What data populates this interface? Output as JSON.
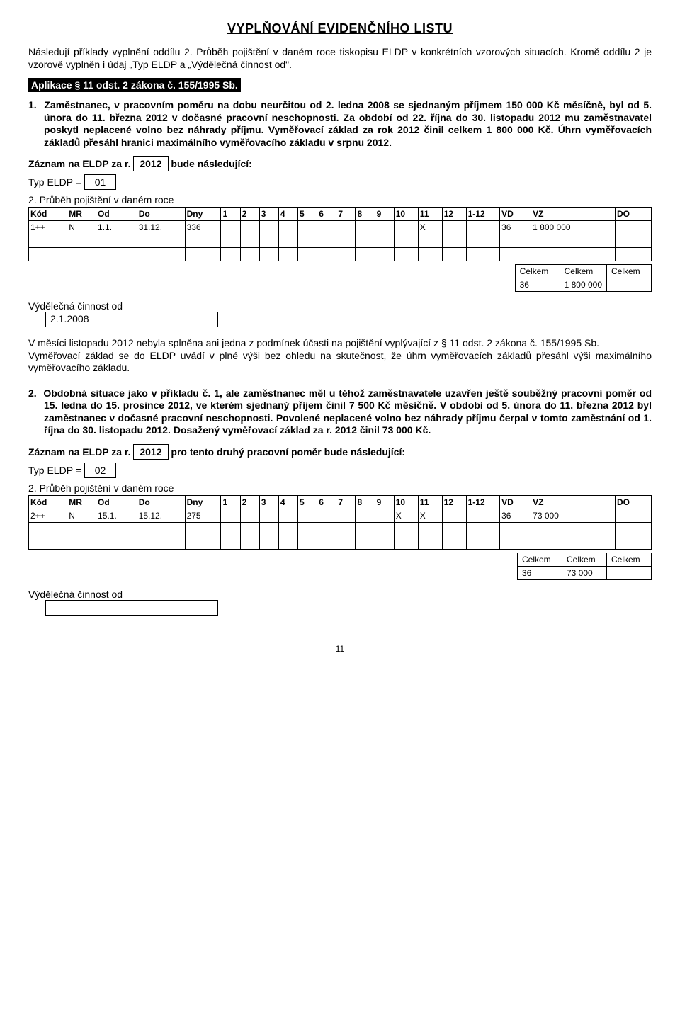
{
  "title": "VYPLŇOVÁNÍ EVIDENČNÍHO LISTU",
  "intro": "Následují příklady vyplnění oddílu 2. Průběh pojištění v daném roce tiskopisu ELDP v konkrétních vzorových situacích. Kromě oddílu 2 je vzorově vyplněn i údaj „Typ ELDP a „Výdělečná činnost od\".",
  "lawBar": "Aplikace § 11 odst. 2 zákona č. 155/1995 Sb.",
  "ex1": {
    "num": "1.",
    "body": "Zaměstnanec, v pracovním poměru na dobu neurčitou od 2. ledna 2008 se sjednaným příjmem 150 000 Kč měsíčně, byl od 5. února do 11. března 2012 v dočasné pracovní neschopnosti. Za období od 22. října do 30. listopadu 2012 mu zaměstnavatel poskytl neplacené volno bez náhrady příjmu. Vyměřovací základ za rok 2012 činil celkem 1 800 000 Kč. Úhrn vyměřovacích základů přesáhl hranici maximálního vyměřovacího základu v srpnu 2012.",
    "rec_a": "Záznam na ELDP za r.",
    "rec_year": "2012",
    "rec_b": "bude následující:",
    "typLabel": "Typ ELDP  =",
    "typVal": "01",
    "header": "2. Průběh pojištění v daném roce",
    "cols": [
      "Kód",
      "MR",
      "Od",
      "Do",
      "Dny",
      "1",
      "2",
      "3",
      "4",
      "5",
      "6",
      "7",
      "8",
      "9",
      "10",
      "11",
      "12",
      "1-12",
      "VD",
      "VZ",
      "DO"
    ],
    "row": [
      "1++",
      "N",
      "1.1.",
      "31.12.",
      "336",
      "",
      "",
      "",
      "",
      "",
      "",
      "",
      "",
      "",
      "",
      "X",
      "",
      "",
      "36",
      "1 800 000",
      ""
    ],
    "totLabel": "Celkem",
    "totals": [
      "36",
      "1 800 000",
      ""
    ],
    "vcoLabel": "Výdělečná činnost od",
    "vcoVal": "2.1.2008",
    "note": "V měsíci listopadu 2012 nebyla splněna ani jedna z podmínek účasti na pojištění vyplývající z § 11 odst. 2 zákona č. 155/1995 Sb.\nVyměřovací základ se do ELDP uvádí v plné výši bez ohledu na skutečnost, že úhrn vyměřovacích základů přesáhl výši maximálního vyměřovacího základu."
  },
  "ex2": {
    "num": "2.",
    "body": "Obdobná situace jako v příkladu č. 1, ale zaměstnanec měl u téhož zaměstnavatele uzavřen ještě souběžný pracovní poměr od 15. ledna do 15. prosince 2012, ve kterém sjednaný příjem činil 7 500 Kč měsíčně. V období od 5. února do 11. března 2012 byl zaměstnanec v dočasné pracovní neschopnosti. Povolené neplacené volno bez náhrady příjmu čerpal v tomto zaměstnání od 1. října do 30. listopadu 2012. Dosažený vyměřovací základ za r. 2012 činil 73 000 Kč.",
    "rec_a": "Záznam na ELDP za r.",
    "rec_year": "2012",
    "rec_b": "pro tento druhý pracovní poměr bude následující:",
    "typLabel": "Typ ELDP  =",
    "typVal": "02",
    "header": "2. Průběh pojištění v daném roce",
    "row": [
      "2++",
      "N",
      "15.1.",
      "15.12.",
      "275",
      "",
      "",
      "",
      "",
      "",
      "",
      "",
      "",
      "",
      "X",
      "X",
      "",
      "",
      "36",
      "73 000",
      ""
    ],
    "totals": [
      "36",
      "73 000",
      ""
    ],
    "vcoLabel": "Výdělečná činnost od",
    "vcoVal": ""
  },
  "pageNum": "11",
  "widths": [
    "32",
    "24",
    "34",
    "40",
    "30",
    "16",
    "16",
    "16",
    "16",
    "16",
    "16",
    "16",
    "16",
    "16",
    "20",
    "20",
    "20",
    "28",
    "26",
    "70",
    "30"
  ]
}
